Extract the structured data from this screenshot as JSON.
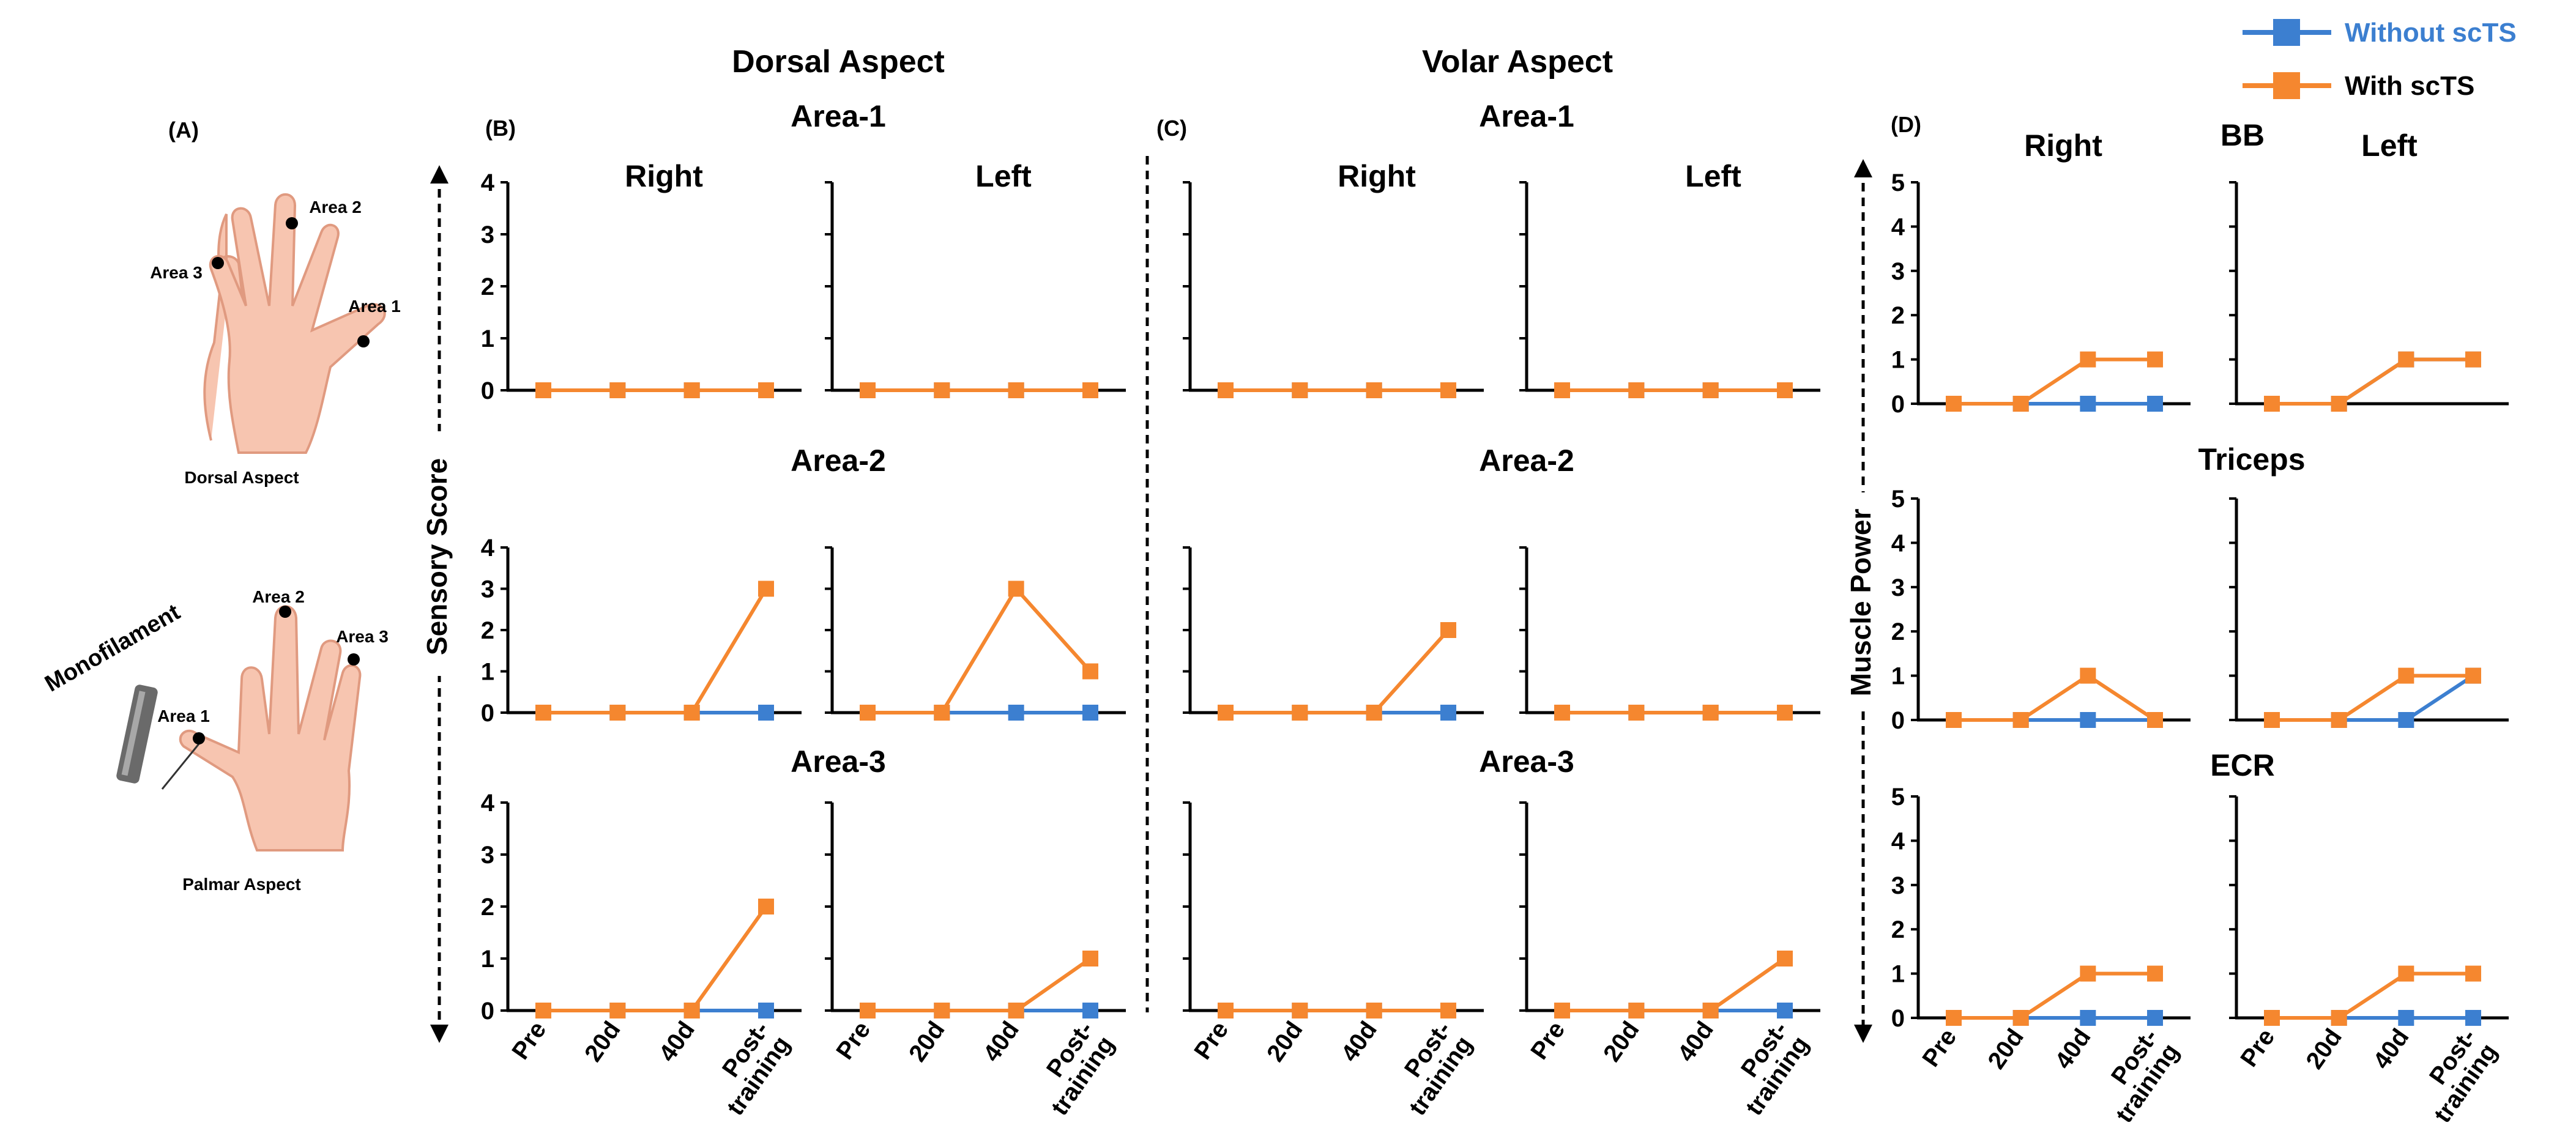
{
  "colors": {
    "without": "#3c7fd0",
    "with": "#f5872f",
    "axis": "#000000"
  },
  "legend": {
    "without_label": "Without scTS",
    "with_label": "With scTS"
  },
  "headers": {
    "dorsal": "Dorsal Aspect",
    "volar": "Volar Aspect",
    "panel_b": "(B)",
    "panel_c": "(C)",
    "panel_d": "(D)",
    "sensory_axis": "Sensory Score",
    "muscle_axis": "Muscle Power"
  },
  "illustration": {
    "panel_label": "(A)",
    "dorsal_caption": "Dorsal Aspect",
    "palmar_caption": "Palmar Aspect",
    "monofilament": "Monofilament",
    "area1": "Area 1",
    "area2": "Area 2",
    "area3": "Area 3"
  },
  "side_labels": {
    "right": "Right",
    "left": "Left"
  },
  "row_titles": {
    "area1": "Area-1",
    "area2": "Area-2",
    "area3": "Area-3",
    "bb": "BB",
    "triceps": "Triceps",
    "ecr": "ECR"
  },
  "x_labels": [
    "Pre",
    "20d",
    "40d",
    "Post-training"
  ],
  "chart_data": [
    {
      "id": "B1R",
      "type": "line",
      "panel": "B",
      "area": "Area-1",
      "side": "Right",
      "ylabel": "Sensory Score",
      "ylim": [
        0,
        4
      ],
      "categories": [
        "Pre",
        "20d",
        "40d",
        "Post-training"
      ],
      "series": [
        {
          "name": "Without scTS",
          "values": [
            0,
            0,
            0,
            0
          ]
        },
        {
          "name": "With scTS",
          "values": [
            0,
            0,
            0,
            0
          ]
        }
      ]
    },
    {
      "id": "B1L",
      "type": "line",
      "panel": "B",
      "area": "Area-1",
      "side": "Left",
      "ylim": [
        0,
        4
      ],
      "categories": [
        "Pre",
        "20d",
        "40d",
        "Post-training"
      ],
      "series": [
        {
          "name": "Without scTS",
          "values": [
            0,
            0,
            0,
            0
          ]
        },
        {
          "name": "With scTS",
          "values": [
            0,
            0,
            0,
            0
          ]
        }
      ]
    },
    {
      "id": "B2R",
      "type": "line",
      "panel": "B",
      "area": "Area-2",
      "side": "Right",
      "ylim": [
        0,
        4
      ],
      "categories": [
        "Pre",
        "20d",
        "40d",
        "Post-training"
      ],
      "series": [
        {
          "name": "Without scTS",
          "values": [
            0,
            0,
            0,
            0
          ]
        },
        {
          "name": "With scTS",
          "values": [
            0,
            0,
            0,
            3
          ]
        }
      ]
    },
    {
      "id": "B2L",
      "type": "line",
      "panel": "B",
      "area": "Area-2",
      "side": "Left",
      "ylim": [
        0,
        4
      ],
      "categories": [
        "Pre",
        "20d",
        "40d",
        "Post-training"
      ],
      "series": [
        {
          "name": "Without scTS",
          "values": [
            0,
            0,
            0,
            0
          ]
        },
        {
          "name": "With scTS",
          "values": [
            0,
            0,
            3,
            1
          ]
        }
      ]
    },
    {
      "id": "B3R",
      "type": "line",
      "panel": "B",
      "area": "Area-3",
      "side": "Right",
      "ylim": [
        0,
        4
      ],
      "categories": [
        "Pre",
        "20d",
        "40d",
        "Post-training"
      ],
      "series": [
        {
          "name": "Without scTS",
          "values": [
            0,
            0,
            0,
            0
          ]
        },
        {
          "name": "With scTS",
          "values": [
            0,
            0,
            0,
            2
          ]
        }
      ]
    },
    {
      "id": "B3L",
      "type": "line",
      "panel": "B",
      "area": "Area-3",
      "side": "Left",
      "ylim": [
        0,
        4
      ],
      "categories": [
        "Pre",
        "20d",
        "40d",
        "Post-training"
      ],
      "series": [
        {
          "name": "Without scTS",
          "values": [
            0,
            0,
            0,
            0
          ]
        },
        {
          "name": "With scTS",
          "values": [
            0,
            0,
            0,
            1
          ]
        }
      ]
    },
    {
      "id": "C1R",
      "type": "line",
      "panel": "C",
      "area": "Area-1",
      "side": "Right",
      "ylim": [
        0,
        4
      ],
      "categories": [
        "Pre",
        "20d",
        "40d",
        "Post-training"
      ],
      "series": [
        {
          "name": "Without scTS",
          "values": [
            0,
            0,
            0,
            0
          ]
        },
        {
          "name": "With scTS",
          "values": [
            0,
            0,
            0,
            0
          ]
        }
      ]
    },
    {
      "id": "C1L",
      "type": "line",
      "panel": "C",
      "area": "Area-1",
      "side": "Left",
      "ylim": [
        0,
        4
      ],
      "categories": [
        "Pre",
        "20d",
        "40d",
        "Post-training"
      ],
      "series": [
        {
          "name": "Without scTS",
          "values": [
            0,
            0,
            0,
            0
          ]
        },
        {
          "name": "With scTS",
          "values": [
            0,
            0,
            0,
            0
          ]
        }
      ]
    },
    {
      "id": "C2R",
      "type": "line",
      "panel": "C",
      "area": "Area-2",
      "side": "Right",
      "ylim": [
        0,
        4
      ],
      "categories": [
        "Pre",
        "20d",
        "40d",
        "Post-training"
      ],
      "series": [
        {
          "name": "Without scTS",
          "values": [
            0,
            0,
            0,
            0
          ]
        },
        {
          "name": "With scTS",
          "values": [
            0,
            0,
            0,
            2
          ]
        }
      ]
    },
    {
      "id": "C2L",
      "type": "line",
      "panel": "C",
      "area": "Area-2",
      "side": "Left",
      "ylim": [
        0,
        4
      ],
      "categories": [
        "Pre",
        "20d",
        "40d",
        "Post-training"
      ],
      "series": [
        {
          "name": "Without scTS",
          "values": [
            0,
            0,
            0,
            0
          ]
        },
        {
          "name": "With scTS",
          "values": [
            0,
            0,
            0,
            0
          ]
        }
      ]
    },
    {
      "id": "C3R",
      "type": "line",
      "panel": "C",
      "area": "Area-3",
      "side": "Right",
      "ylim": [
        0,
        4
      ],
      "categories": [
        "Pre",
        "20d",
        "40d",
        "Post-training"
      ],
      "series": [
        {
          "name": "Without scTS",
          "values": [
            0,
            0,
            0,
            0
          ]
        },
        {
          "name": "With scTS",
          "values": [
            0,
            0,
            0,
            0
          ]
        }
      ]
    },
    {
      "id": "C3L",
      "type": "line",
      "panel": "C",
      "area": "Area-3",
      "side": "Left",
      "ylim": [
        0,
        4
      ],
      "categories": [
        "Pre",
        "20d",
        "40d",
        "Post-training"
      ],
      "series": [
        {
          "name": "Without scTS",
          "values": [
            0,
            0,
            0,
            0
          ]
        },
        {
          "name": "With scTS",
          "values": [
            0,
            0,
            0,
            1
          ]
        }
      ]
    },
    {
      "id": "D1R",
      "type": "line",
      "panel": "D",
      "muscle": "BB",
      "side": "Right",
      "ylabel": "Muscle Power",
      "ylim": [
        0,
        5
      ],
      "categories": [
        "Pre",
        "20d",
        "40d",
        "Post-training"
      ],
      "series": [
        {
          "name": "Without scTS",
          "values": [
            0,
            0,
            0,
            0
          ]
        },
        {
          "name": "With scTS",
          "values": [
            0,
            0,
            1,
            1
          ]
        }
      ]
    },
    {
      "id": "D1L",
      "type": "line",
      "panel": "D",
      "muscle": "BB",
      "side": "Left",
      "ylim": [
        0,
        5
      ],
      "categories": [
        "Pre",
        "20d",
        "40d",
        "Post-training"
      ],
      "series": [
        {
          "name": "Without scTS",
          "values": [
            0,
            0,
            1,
            1
          ]
        },
        {
          "name": "With scTS",
          "values": [
            0,
            0,
            1,
            1
          ]
        }
      ]
    },
    {
      "id": "D2R",
      "type": "line",
      "panel": "D",
      "muscle": "Triceps",
      "side": "Right",
      "ylim": [
        0,
        5
      ],
      "categories": [
        "Pre",
        "20d",
        "40d",
        "Post-training"
      ],
      "series": [
        {
          "name": "Without scTS",
          "values": [
            0,
            0,
            0,
            0
          ]
        },
        {
          "name": "With scTS",
          "values": [
            0,
            0,
            1,
            0
          ]
        }
      ]
    },
    {
      "id": "D2L",
      "type": "line",
      "panel": "D",
      "muscle": "Triceps",
      "side": "Left",
      "ylim": [
        0,
        5
      ],
      "categories": [
        "Pre",
        "20d",
        "40d",
        "Post-training"
      ],
      "series": [
        {
          "name": "Without scTS",
          "values": [
            0,
            0,
            0,
            1
          ]
        },
        {
          "name": "With scTS",
          "values": [
            0,
            0,
            1,
            1
          ]
        }
      ]
    },
    {
      "id": "D3R",
      "type": "line",
      "panel": "D",
      "muscle": "ECR",
      "side": "Right",
      "ylim": [
        0,
        5
      ],
      "categories": [
        "Pre",
        "20d",
        "40d",
        "Post-training"
      ],
      "series": [
        {
          "name": "Without scTS",
          "values": [
            0,
            0,
            0,
            0
          ]
        },
        {
          "name": "With scTS",
          "values": [
            0,
            0,
            1,
            1
          ]
        }
      ]
    },
    {
      "id": "D3L",
      "type": "line",
      "panel": "D",
      "muscle": "ECR",
      "side": "Left",
      "ylim": [
        0,
        5
      ],
      "categories": [
        "Pre",
        "20d",
        "40d",
        "Post-training"
      ],
      "series": [
        {
          "name": "Without scTS",
          "values": [
            0,
            0,
            0,
            0
          ]
        },
        {
          "name": "With scTS",
          "values": [
            0,
            0,
            1,
            1
          ]
        }
      ]
    }
  ]
}
